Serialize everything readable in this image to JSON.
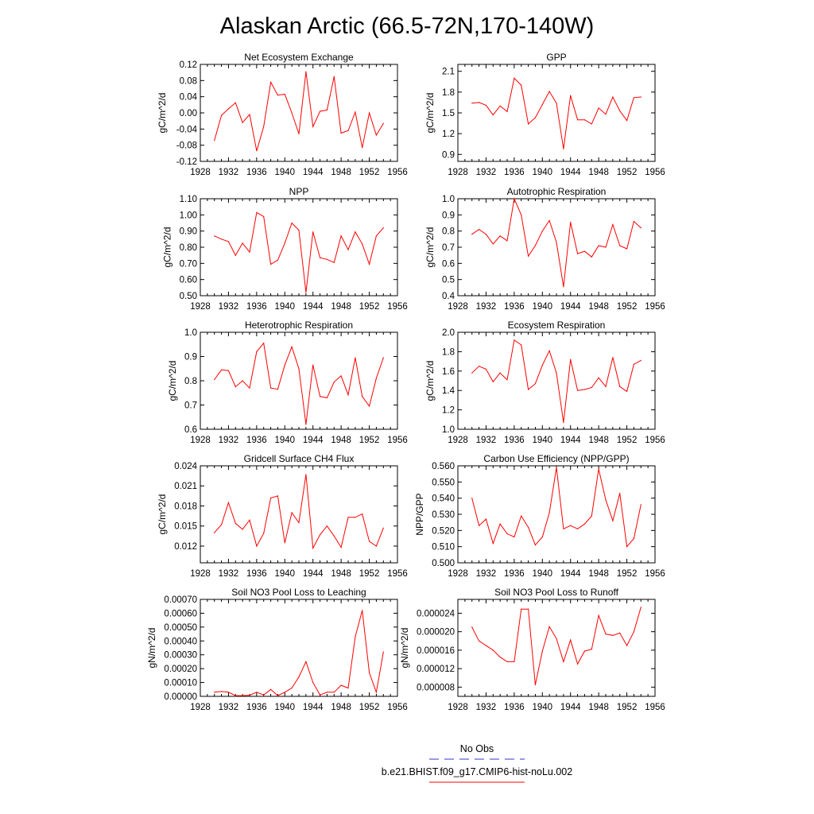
{
  "title": "Alaskan Arctic (66.5-72N,170-140W)",
  "line_color": "#ff0000",
  "legend": [
    {
      "label": "No Obs",
      "color": "#3333cc",
      "style": "dashed"
    },
    {
      "label": "b.e21.BHIST.f09_g17.CMIP6-hist-noLu.002",
      "color": "#ff0000",
      "style": "solid"
    }
  ],
  "chart_data": [
    {
      "type": "line",
      "title": "Net Ecosystem Exchange",
      "ylabel": "gC/m^2/d",
      "xlim": [
        1928,
        1956
      ],
      "xticks": [
        "1928",
        "1932",
        "1936",
        "1940",
        "1944",
        "1948",
        "1952",
        "1956"
      ],
      "ylim": [
        -0.12,
        0.12
      ],
      "yticks": [
        "-0.12",
        "-0.08",
        "-0.04",
        "0.00",
        "0.04",
        "0.08",
        "0.12"
      ],
      "x": [
        1930,
        1931,
        1932,
        1933,
        1934,
        1935,
        1936,
        1937,
        1938,
        1939,
        1940,
        1941,
        1942,
        1943,
        1944,
        1945,
        1946,
        1947,
        1948,
        1949,
        1950,
        1951,
        1952,
        1953,
        1954
      ],
      "y": [
        -0.068,
        -0.006,
        0.01,
        0.025,
        -0.024,
        -0.004,
        -0.094,
        -0.034,
        0.076,
        0.044,
        0.046,
        0.0,
        -0.052,
        0.102,
        -0.034,
        0.004,
        0.007,
        0.09,
        -0.05,
        -0.044,
        0.002,
        -0.086,
        0.0,
        -0.055,
        -0.026
      ]
    },
    {
      "type": "line",
      "title": "GPP",
      "ylabel": "gC/m^2/d",
      "xlim": [
        1928,
        1956
      ],
      "xticks": [
        "1928",
        "1932",
        "1936",
        "1940",
        "1944",
        "1948",
        "1952",
        "1956"
      ],
      "ylim": [
        0.8,
        2.2
      ],
      "yticks": [
        "0.9",
        "1.2",
        "1.5",
        "1.8",
        "2.1"
      ],
      "x": [
        1930,
        1931,
        1932,
        1933,
        1934,
        1935,
        1936,
        1937,
        1938,
        1939,
        1940,
        1941,
        1942,
        1943,
        1944,
        1945,
        1946,
        1947,
        1948,
        1949,
        1950,
        1951,
        1952,
        1953,
        1954
      ],
      "y": [
        1.64,
        1.65,
        1.61,
        1.47,
        1.6,
        1.52,
        2.0,
        1.9,
        1.34,
        1.43,
        1.62,
        1.81,
        1.64,
        0.98,
        1.75,
        1.4,
        1.4,
        1.34,
        1.57,
        1.48,
        1.73,
        1.53,
        1.39,
        1.72,
        1.73
      ]
    },
    {
      "type": "line",
      "title": "NPP",
      "ylabel": "gC/m^2/d",
      "xlim": [
        1928,
        1956
      ],
      "xticks": [
        "1928",
        "1932",
        "1936",
        "1940",
        "1944",
        "1948",
        "1952",
        "1956"
      ],
      "ylim": [
        0.5,
        1.1
      ],
      "yticks": [
        "0.50",
        "0.60",
        "0.70",
        "0.80",
        "0.90",
        "1.00",
        "1.10"
      ],
      "x": [
        1930,
        1931,
        1932,
        1933,
        1934,
        1935,
        1936,
        1937,
        1938,
        1939,
        1940,
        1941,
        1942,
        1943,
        1944,
        1945,
        1946,
        1947,
        1948,
        1949,
        1950,
        1951,
        1952,
        1953,
        1954
      ],
      "y": [
        0.87,
        0.85,
        0.835,
        0.75,
        0.825,
        0.77,
        1.015,
        0.99,
        0.695,
        0.72,
        0.825,
        0.95,
        0.905,
        0.52,
        0.895,
        0.735,
        0.725,
        0.705,
        0.87,
        0.785,
        0.895,
        0.82,
        0.695,
        0.87,
        0.92
      ]
    },
    {
      "type": "line",
      "title": "Autotrophic Respiration",
      "ylabel": "gC/m^2/d",
      "xlim": [
        1928,
        1956
      ],
      "xticks": [
        "1928",
        "1932",
        "1936",
        "1940",
        "1944",
        "1948",
        "1952",
        "1956"
      ],
      "ylim": [
        0.4,
        1.0
      ],
      "yticks": [
        "0.4",
        "0.5",
        "0.6",
        "0.7",
        "0.8",
        "0.9",
        "1.0"
      ],
      "x": [
        1930,
        1931,
        1932,
        1933,
        1934,
        1935,
        1936,
        1937,
        1938,
        1939,
        1940,
        1941,
        1942,
        1943,
        1944,
        1945,
        1946,
        1947,
        1948,
        1949,
        1950,
        1951,
        1952,
        1953,
        1954
      ],
      "y": [
        0.78,
        0.81,
        0.78,
        0.72,
        0.77,
        0.74,
        1.0,
        0.9,
        0.645,
        0.71,
        0.8,
        0.865,
        0.73,
        0.455,
        0.855,
        0.66,
        0.675,
        0.64,
        0.71,
        0.7,
        0.84,
        0.71,
        0.69,
        0.86,
        0.82
      ]
    },
    {
      "type": "line",
      "title": "Heterotrophic Respiration",
      "ylabel": "gC/m^2/d",
      "xlim": [
        1928,
        1956
      ],
      "xticks": [
        "1928",
        "1932",
        "1936",
        "1940",
        "1944",
        "1948",
        "1952",
        "1956"
      ],
      "ylim": [
        0.6,
        1.0
      ],
      "yticks": [
        "0.6",
        "0.7",
        "0.8",
        "0.9",
        "1.0"
      ],
      "x": [
        1930,
        1931,
        1932,
        1933,
        1934,
        1935,
        1936,
        1937,
        1938,
        1939,
        1940,
        1941,
        1942,
        1943,
        1944,
        1945,
        1946,
        1947,
        1948,
        1949,
        1950,
        1951,
        1952,
        1953,
        1954
      ],
      "y": [
        0.805,
        0.845,
        0.842,
        0.775,
        0.8,
        0.77,
        0.92,
        0.955,
        0.77,
        0.765,
        0.865,
        0.94,
        0.85,
        0.62,
        0.865,
        0.735,
        0.73,
        0.795,
        0.82,
        0.742,
        0.895,
        0.735,
        0.695,
        0.81,
        0.895
      ]
    },
    {
      "type": "line",
      "title": "Ecosystem Respiration",
      "ylabel": "gC/m^2/d",
      "xlim": [
        1928,
        1956
      ],
      "xticks": [
        "1928",
        "1932",
        "1936",
        "1940",
        "1944",
        "1948",
        "1952",
        "1956"
      ],
      "ylim": [
        1.0,
        2.0
      ],
      "yticks": [
        "1.0",
        "1.2",
        "1.4",
        "1.6",
        "1.8",
        "2.0"
      ],
      "x": [
        1930,
        1931,
        1932,
        1933,
        1934,
        1935,
        1936,
        1937,
        1938,
        1939,
        1940,
        1941,
        1942,
        1943,
        1944,
        1945,
        1946,
        1947,
        1948,
        1949,
        1950,
        1951,
        1952,
        1953,
        1954
      ],
      "y": [
        1.58,
        1.65,
        1.62,
        1.49,
        1.58,
        1.51,
        1.92,
        1.87,
        1.41,
        1.47,
        1.66,
        1.81,
        1.58,
        1.07,
        1.72,
        1.4,
        1.41,
        1.43,
        1.53,
        1.44,
        1.74,
        1.44,
        1.39,
        1.67,
        1.71
      ]
    },
    {
      "type": "line",
      "title": "Gridcell Surface CH4 Flux",
      "ylabel": "gC/m^2/d",
      "xlim": [
        1928,
        1956
      ],
      "xticks": [
        "1928",
        "1932",
        "1936",
        "1940",
        "1944",
        "1948",
        "1952",
        "1956"
      ],
      "ylim": [
        0.0095,
        0.024
      ],
      "yticks": [
        "0.012",
        "0.015",
        "0.018",
        "0.021",
        "0.024"
      ],
      "x": [
        1930,
        1931,
        1932,
        1933,
        1934,
        1935,
        1936,
        1937,
        1938,
        1939,
        1940,
        1941,
        1942,
        1943,
        1944,
        1945,
        1946,
        1947,
        1948,
        1949,
        1950,
        1951,
        1952,
        1953,
        1954
      ],
      "y": [
        0.014,
        0.0152,
        0.0185,
        0.0154,
        0.0145,
        0.0159,
        0.012,
        0.0139,
        0.0192,
        0.0195,
        0.0125,
        0.017,
        0.0155,
        0.0227,
        0.0117,
        0.0137,
        0.015,
        0.0135,
        0.0118,
        0.0163,
        0.0163,
        0.0168,
        0.0127,
        0.012,
        0.0147
      ]
    },
    {
      "type": "line",
      "title": "Carbon Use Efficiency (NPP/GPP)",
      "ylabel": "NPP/GPP",
      "xlim": [
        1928,
        1956
      ],
      "xticks": [
        "1928",
        "1932",
        "1936",
        "1940",
        "1944",
        "1948",
        "1952",
        "1956"
      ],
      "ylim": [
        0.5,
        0.56
      ],
      "yticks": [
        "0.500",
        "0.510",
        "0.520",
        "0.530",
        "0.540",
        "0.550",
        "0.560"
      ],
      "x": [
        1930,
        1931,
        1932,
        1933,
        1934,
        1935,
        1936,
        1937,
        1938,
        1939,
        1940,
        1941,
        1942,
        1943,
        1944,
        1945,
        1946,
        1947,
        1948,
        1949,
        1950,
        1951,
        1952,
        1953,
        1954
      ],
      "y": [
        0.54,
        0.523,
        0.527,
        0.512,
        0.524,
        0.518,
        0.516,
        0.529,
        0.522,
        0.511,
        0.516,
        0.531,
        0.559,
        0.521,
        0.523,
        0.521,
        0.524,
        0.529,
        0.558,
        0.539,
        0.526,
        0.543,
        0.51,
        0.515,
        0.536
      ]
    },
    {
      "type": "line",
      "title": "Soil NO3 Pool Loss to Leaching",
      "ylabel": "gN/m^2/d",
      "xlim": [
        1928,
        1956
      ],
      "xticks": [
        "1928",
        "1932",
        "1936",
        "1940",
        "1944",
        "1948",
        "1952",
        "1956"
      ],
      "ylim": [
        0,
        0.0007
      ],
      "yticks": [
        "0.00000",
        "0.00010",
        "0.00020",
        "0.00030",
        "0.00040",
        "0.00050",
        "0.00060",
        "0.00070"
      ],
      "x": [
        1930,
        1931,
        1932,
        1933,
        1934,
        1935,
        1936,
        1937,
        1938,
        1939,
        1940,
        1941,
        1942,
        1943,
        1944,
        1945,
        1946,
        1947,
        1948,
        1949,
        1950,
        1951,
        1952,
        1953,
        1954
      ],
      "y": [
        3e-05,
        3.5e-05,
        3e-05,
        5e-06,
        5e-06,
        8e-06,
        3e-05,
        1e-05,
        5e-05,
        5e-06,
        3e-05,
        6e-05,
        0.00014,
        0.00025,
        0.0001,
        1e-05,
        3e-05,
        3e-05,
        8e-05,
        6e-05,
        0.00043,
        0.00062,
        0.00017,
        3e-05,
        0.00032
      ]
    },
    {
      "type": "line",
      "title": "Soil NO3 Pool Loss to Runoff",
      "ylabel": "gN/m^2/d",
      "xlim": [
        1928,
        1956
      ],
      "xticks": [
        "1928",
        "1932",
        "1936",
        "1940",
        "1944",
        "1948",
        "1952",
        "1956"
      ],
      "ylim": [
        6e-06,
        2.7e-05
      ],
      "yticks": [
        "0.000008",
        "0.000012",
        "0.000016",
        "0.000020",
        "0.000024"
      ],
      "x": [
        1930,
        1931,
        1932,
        1933,
        1934,
        1935,
        1936,
        1937,
        1938,
        1939,
        1940,
        1941,
        1942,
        1943,
        1944,
        1945,
        1946,
        1947,
        1948,
        1949,
        1950,
        1951,
        1952,
        1953,
        1954
      ],
      "y": [
        2.1e-05,
        1.8e-05,
        1.7e-05,
        1.6e-05,
        1.45e-05,
        1.35e-05,
        1.35e-05,
        2.49e-05,
        2.49e-05,
        8.5e-06,
        1.58e-05,
        2.11e-05,
        1.85e-05,
        1.35e-05,
        1.82e-05,
        1.3e-05,
        1.58e-05,
        1.62e-05,
        2.35e-05,
        1.95e-05,
        1.92e-05,
        1.97e-05,
        1.7e-05,
        2e-05,
        2.53e-05
      ]
    }
  ]
}
